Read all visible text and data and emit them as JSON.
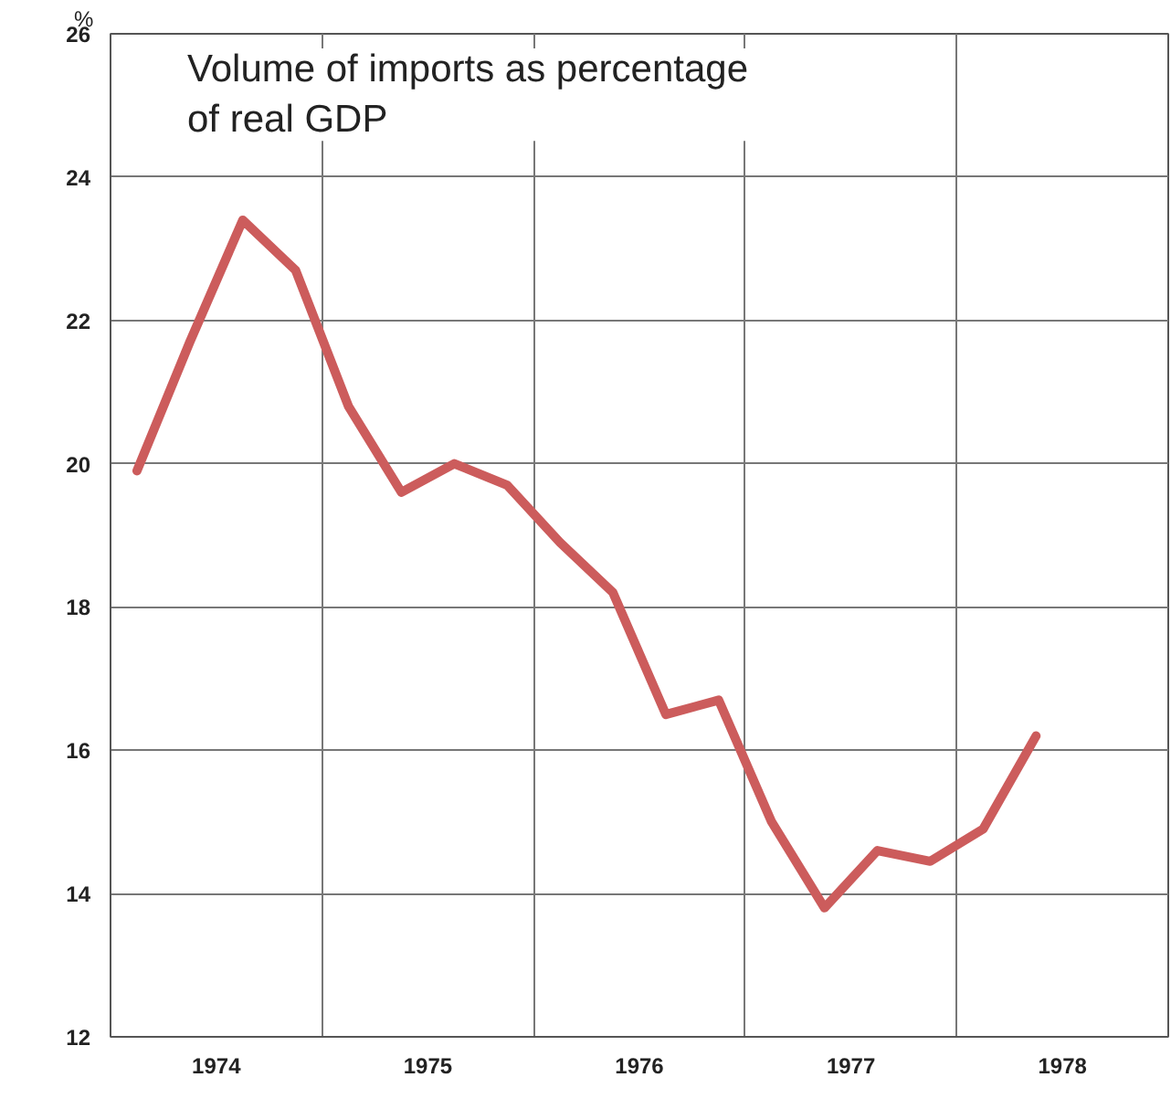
{
  "chart_data": {
    "type": "line",
    "title": "Volume of imports as percentage\nof real GDP",
    "ylabel": "%",
    "x": [
      1974.125,
      1974.375,
      1974.625,
      1974.875,
      1975.125,
      1975.375,
      1975.625,
      1975.875,
      1976.125,
      1976.375,
      1976.625,
      1976.875,
      1977.125,
      1977.375,
      1977.625,
      1977.875,
      1978.125,
      1978.375
    ],
    "series": [
      {
        "color": "#cc5c5c",
        "values": [
          19.9,
          21.7,
          23.4,
          22.7,
          20.8,
          19.6,
          20.0,
          19.7,
          18.9,
          18.2,
          16.5,
          16.7,
          15.0,
          13.8,
          14.6,
          14.45,
          14.9,
          16.2
        ]
      }
    ],
    "xlim": [
      1974,
      1979
    ],
    "xticks": [
      {
        "value": 1974,
        "label": null
      },
      {
        "value": 1974.5,
        "label": "1974"
      },
      {
        "value": 1975,
        "label": null
      },
      {
        "value": 1975.5,
        "label": "1975"
      },
      {
        "value": 1976,
        "label": null
      },
      {
        "value": 1976.5,
        "label": "1976"
      },
      {
        "value": 1977,
        "label": null
      },
      {
        "value": 1977.5,
        "label": "1977"
      },
      {
        "value": 1978,
        "label": null
      },
      {
        "value": 1978.5,
        "label": "1978"
      },
      {
        "value": 1979,
        "label": null
      }
    ],
    "ylim": [
      12,
      26
    ],
    "yticks": [
      12,
      14,
      16,
      18,
      20,
      22,
      24,
      26
    ],
    "grid": true,
    "line_style": "solid"
  }
}
